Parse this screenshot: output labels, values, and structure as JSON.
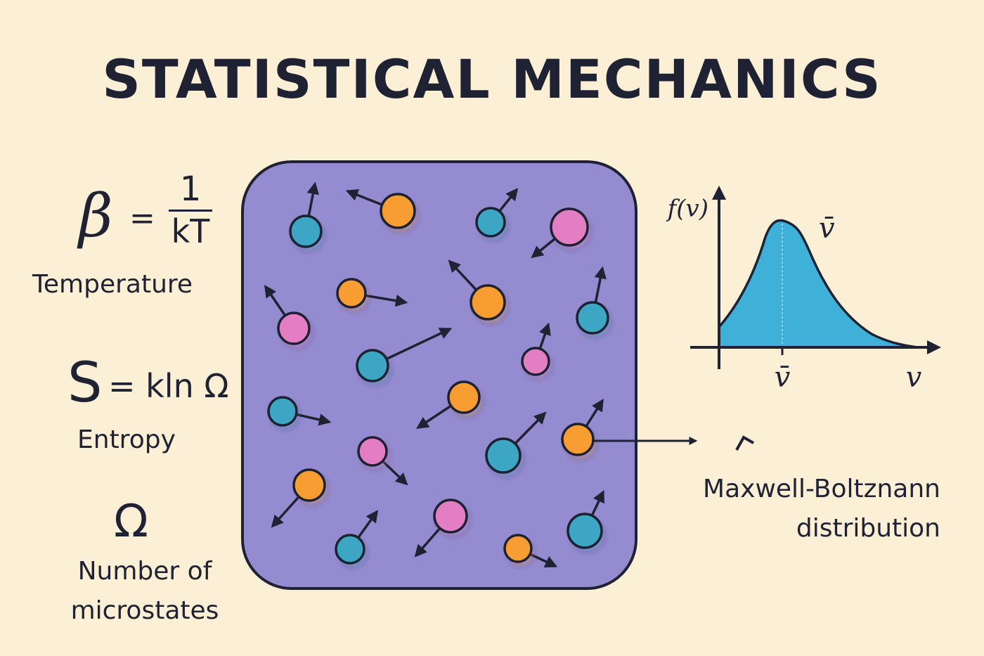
{
  "title": "STATISTICAL MECHANICS",
  "formulas": {
    "beta": {
      "symbol": "β",
      "equals": "=",
      "numerator": "1",
      "denominator": "kT",
      "label": "Temperature"
    },
    "entropy": {
      "symbol": "S",
      "rest": "= kln Ω",
      "label": "Entropy"
    },
    "microstates": {
      "symbol": "Ω",
      "label_line1": "Number of",
      "label_line2": "microstates"
    }
  },
  "graph": {
    "y_label": "f(v)",
    "peak_label": "v̄",
    "mean_tick_label": "v̄",
    "x_label": "v"
  },
  "mb_label": {
    "line1": "Maxwell-Boltznann",
    "line2": "distribution"
  },
  "colors": {
    "background": "#fbefd6",
    "box": "#958bd0",
    "ink": "#1f2233",
    "teal": "#3da6c4",
    "orange": "#f89d33",
    "pink": "#e47ec4",
    "curve_fill": "#3fb1d8"
  }
}
